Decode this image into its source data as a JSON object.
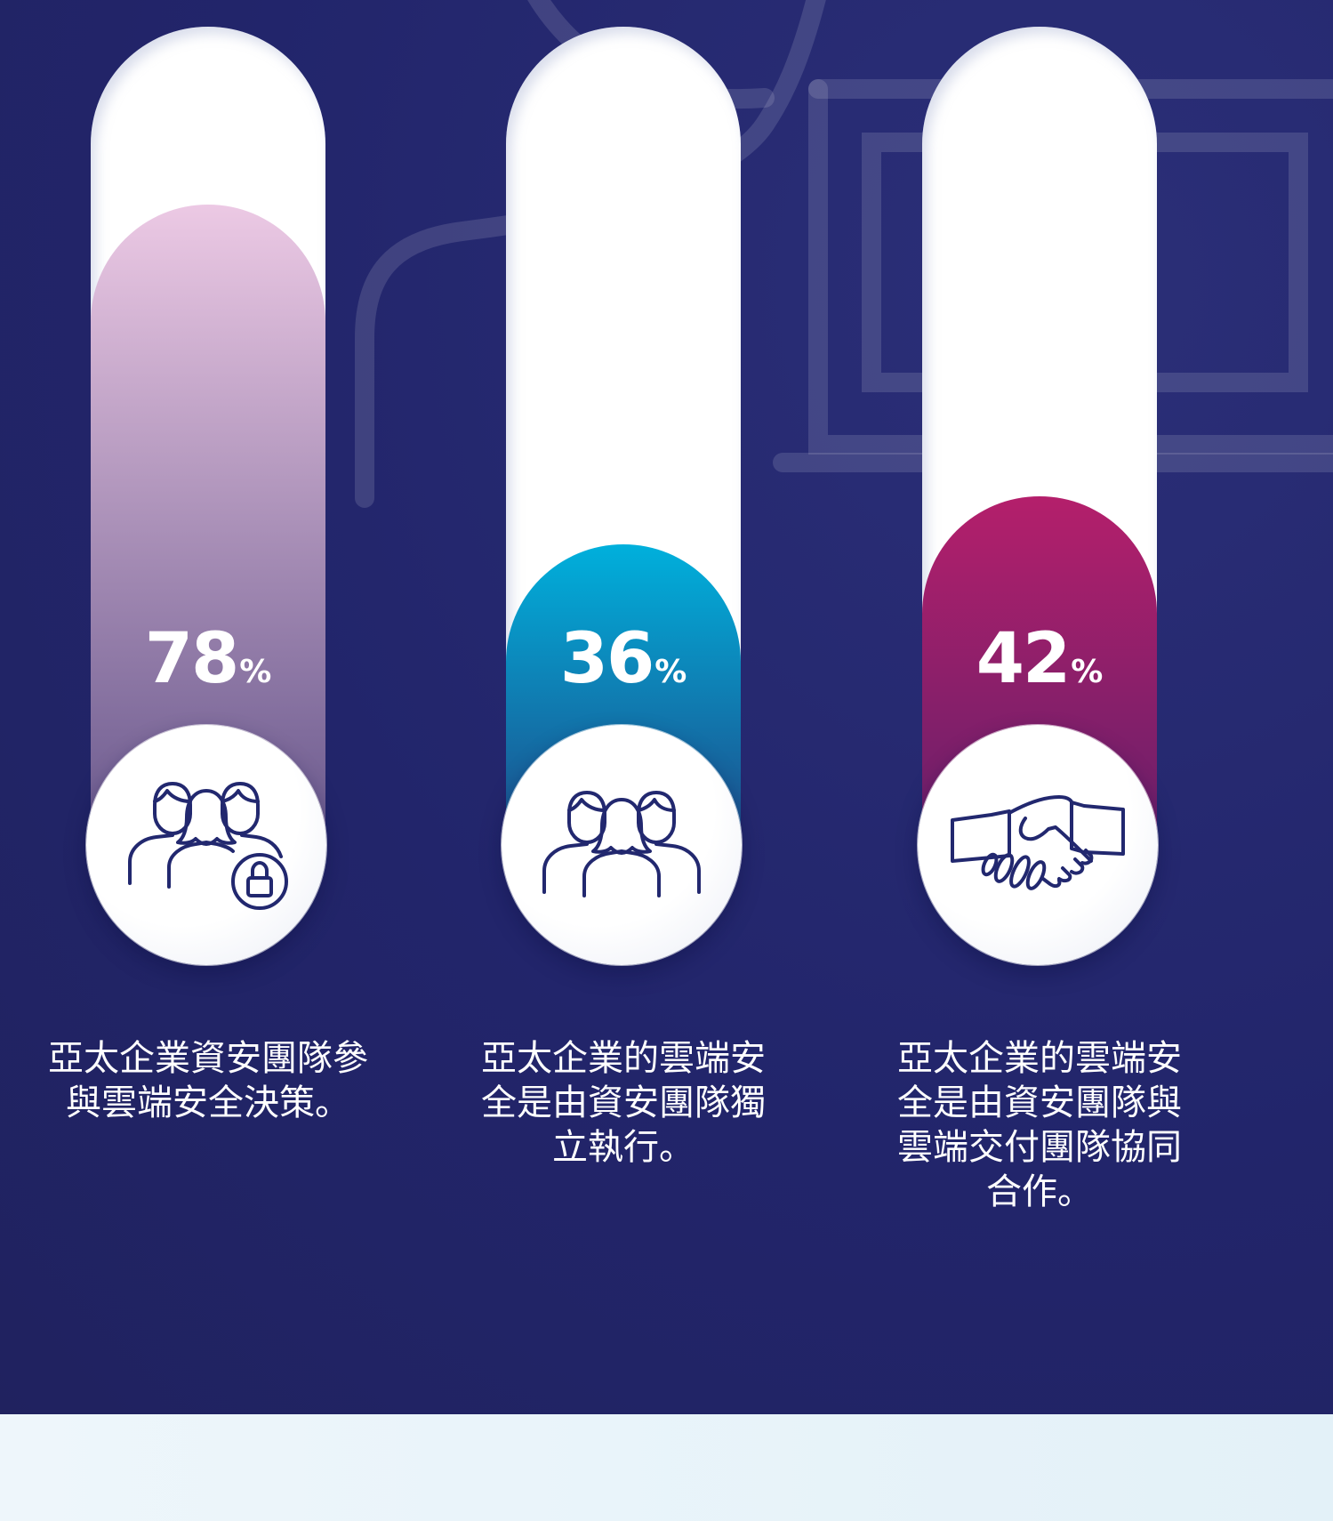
{
  "chart_data": {
    "type": "bar",
    "categories": [
      "亞太企業資安團隊參與雲端安全決策。",
      "亞太企業的雲端安全是由資安團隊獨立執行。",
      "亞太企業的雲端安全是由資安團隊與雲端交付團隊協同合作。"
    ],
    "values": [
      78,
      36,
      42
    ],
    "unit": "%",
    "ylim": [
      0,
      100
    ],
    "colors": [
      [
        "#ecc9e4",
        "#6b5a8e"
      ],
      [
        "#00b0dc",
        "#1d4f8c"
      ],
      [
        "#b41f6b",
        "#6a1f6a"
      ]
    ]
  },
  "bars": [
    {
      "value": "78",
      "unit": "%",
      "icon": "team-lock-icon",
      "caption": "亞太企業資安團隊參\n與雲端安全決策。"
    },
    {
      "value": "36",
      "unit": "%",
      "icon": "team-icon",
      "caption": "亞太企業的雲端安\n全是由資安團隊獨\n立執行。"
    },
    {
      "value": "42",
      "unit": "%",
      "icon": "handshake-icon",
      "caption": "亞太企業的雲端安\n全是由資安團隊與\n雲端交付團隊協同\n合作。"
    }
  ]
}
